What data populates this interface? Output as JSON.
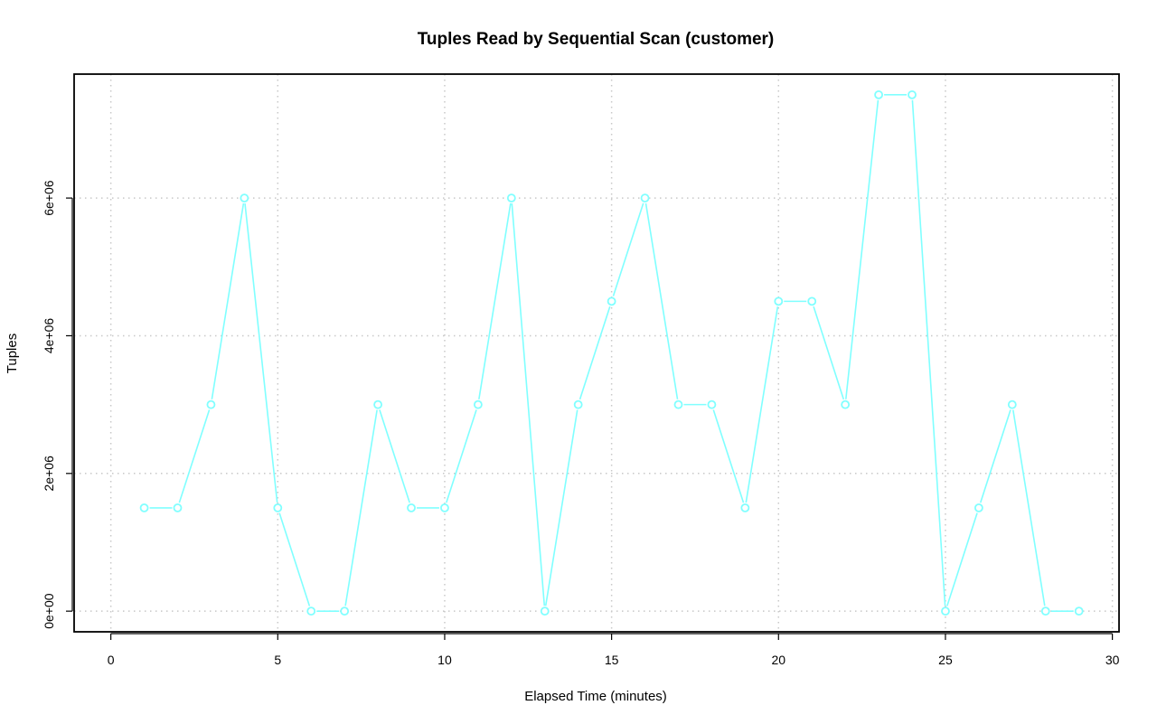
{
  "chart_data": {
    "type": "line",
    "title": "Tuples Read by Sequential Scan (customer)",
    "xlabel": "Elapsed Time (minutes)",
    "ylabel": "Tuples",
    "xlim": [
      -1.1,
      30.2
    ],
    "ylim": [
      -300000,
      7800000
    ],
    "x_ticks": [
      0,
      5,
      10,
      15,
      20,
      25,
      30
    ],
    "x_tick_labels": [
      "0",
      "5",
      "10",
      "15",
      "20",
      "25",
      "30"
    ],
    "y_ticks": [
      0,
      2000000,
      4000000,
      6000000
    ],
    "y_tick_labels": [
      "0e+00",
      "2e+06",
      "4e+06",
      "6e+06"
    ],
    "grid": true,
    "series": [
      {
        "color": "#80ffff",
        "marker": "open-circle",
        "x": [
          1,
          2,
          3,
          4,
          5,
          6,
          7,
          8,
          9,
          10,
          11,
          12,
          13,
          14,
          15,
          16,
          17,
          18,
          19,
          20,
          21,
          22,
          23,
          24,
          25,
          26,
          27,
          28,
          29
        ],
        "values": [
          1500000,
          1500000,
          3000000,
          6000000,
          1500000,
          0,
          0,
          3000000,
          1500000,
          1500000,
          3000000,
          6000000,
          0,
          3000000,
          4500000,
          6000000,
          3000000,
          3000000,
          1500000,
          4500000,
          4500000,
          3000000,
          7500000,
          7500000,
          0,
          1500000,
          3000000,
          0,
          0
        ]
      }
    ]
  }
}
